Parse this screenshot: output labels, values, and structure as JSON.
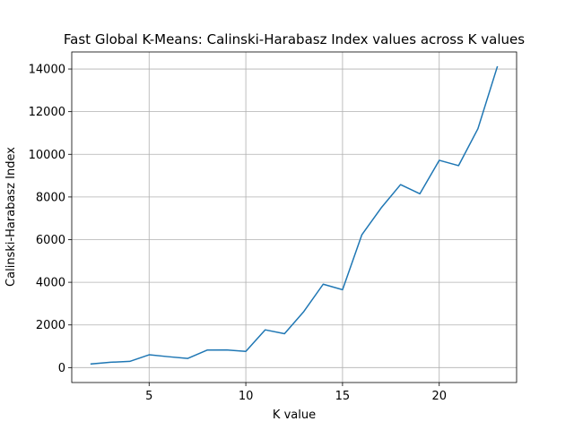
{
  "chart_data": {
    "type": "line",
    "title": "Fast Global K-Means: Calinski-Harabasz Index values across K values",
    "xlabel": "K value",
    "ylabel": "Calinski-Harabasz Index",
    "xlim": [
      1.0,
      24.0
    ],
    "ylim": [
      -700,
      14800
    ],
    "xticks": [
      5,
      10,
      15,
      20
    ],
    "yticks": [
      0,
      2000,
      4000,
      6000,
      8000,
      10000,
      12000,
      14000
    ],
    "grid": true,
    "series": [
      {
        "color": "#1f77b4",
        "x": [
          2,
          3,
          4,
          5,
          6,
          7,
          8,
          9,
          10,
          11,
          12,
          13,
          14,
          15,
          16,
          17,
          18,
          19,
          20,
          21,
          22,
          23
        ],
        "y": [
          170,
          250,
          290,
          600,
          510,
          430,
          820,
          830,
          760,
          1770,
          1590,
          2630,
          3910,
          3650,
          6230,
          7490,
          8580,
          8150,
          9720,
          9470,
          11200,
          14100
        ]
      }
    ]
  }
}
